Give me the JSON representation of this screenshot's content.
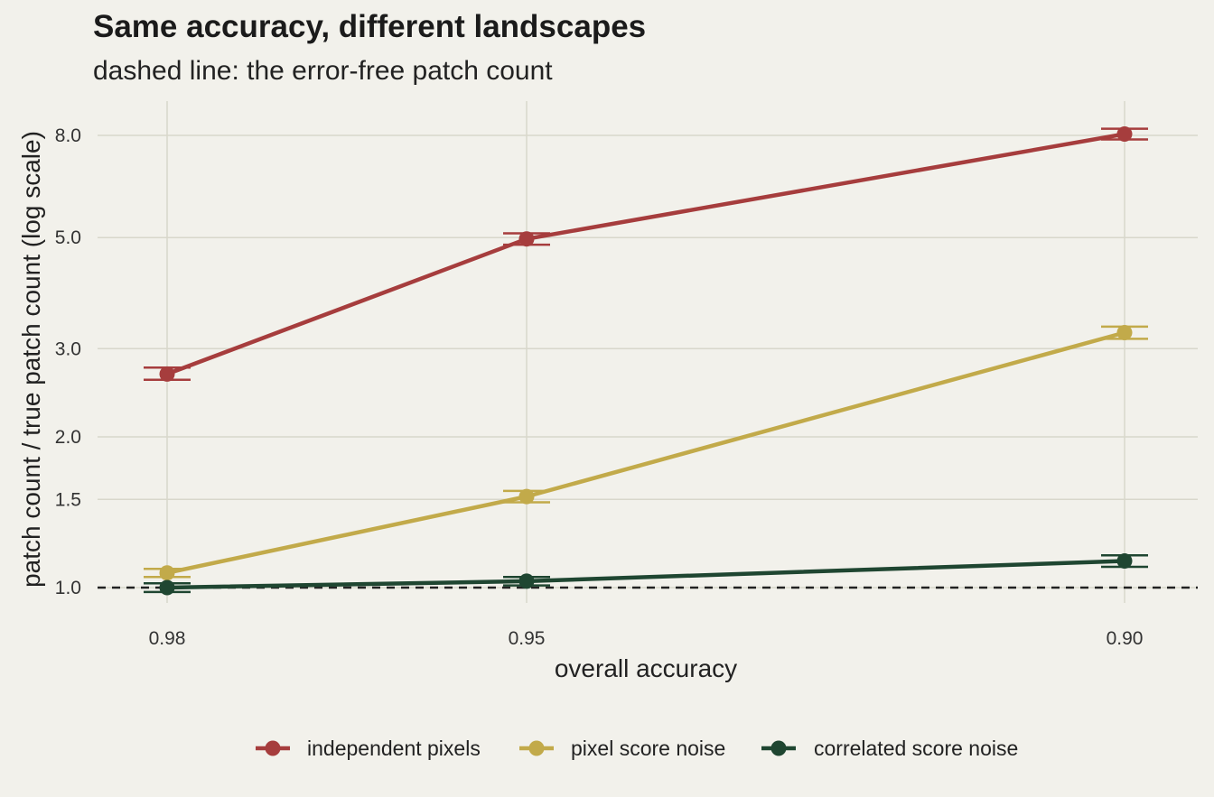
{
  "title": "Same accuracy, different landscapes",
  "subtitle": "dashed line: the error-free patch count",
  "colors": {
    "background": "#f2f1eb",
    "grid": "#d8d7cb",
    "reference": "#222222",
    "independent": "#a63d3d",
    "pixel": "#c2aa4a",
    "correlated": "#1f4631"
  },
  "chart_data": {
    "type": "line",
    "xlabel": "overall accuracy",
    "ylabel": "patch count / true patch count (log scale)",
    "x_categories": [
      "0.98",
      "0.95",
      "0.90"
    ],
    "x_values": [
      0.98,
      0.95,
      0.9
    ],
    "x_scale": "reversed",
    "y_scale": "log",
    "y_ticks": [
      1.0,
      1.5,
      2.0,
      3.0,
      5.0,
      8.0
    ],
    "y_tick_labels": [
      "1.0",
      "1.5",
      "2.0",
      "3.0",
      "5.0",
      "8.0"
    ],
    "ylim": [
      0.93,
      8.6
    ],
    "grid": true,
    "reference_line": {
      "y": 1.0,
      "style": "dashed"
    },
    "legend_position": "bottom",
    "series": [
      {
        "name": "independent pixels",
        "color_key": "independent",
        "values": [
          2.67,
          4.97,
          8.05
        ],
        "error_low": [
          2.6,
          4.84,
          7.85
        ],
        "error_high": [
          2.75,
          5.1,
          8.25
        ]
      },
      {
        "name": "pixel score noise",
        "color_key": "pixel",
        "values": [
          1.07,
          1.52,
          3.23
        ],
        "error_low": [
          1.05,
          1.48,
          3.14
        ],
        "error_high": [
          1.09,
          1.56,
          3.32
        ]
      },
      {
        "name": "correlated score noise",
        "color_key": "correlated",
        "values": [
          1.0,
          1.03,
          1.13
        ],
        "error_low": [
          0.98,
          1.01,
          1.1
        ],
        "error_high": [
          1.02,
          1.05,
          1.16
        ]
      }
    ]
  }
}
